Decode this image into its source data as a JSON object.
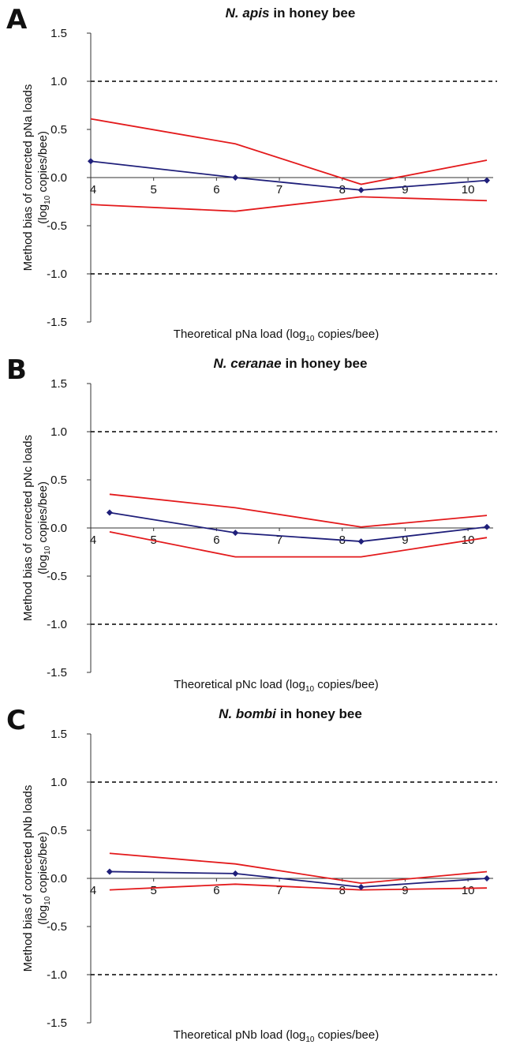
{
  "chart_data": [
    {
      "type": "line",
      "panel_label": "A",
      "title_italic": "N. apis",
      "title_rest": "in honey bee",
      "y_label_line1": "Method bias of corrected pNa loads",
      "y_label_line2": {
        "before": "(log",
        "sub": "10",
        "after": " copies/bee)"
      },
      "x_label": {
        "before": "Theoretical pNa load (log",
        "sub": "10",
        "after": " copies/bee)"
      },
      "x": [
        4,
        6.3,
        8.3,
        10.3
      ],
      "series": [
        {
          "color": "#e31a1c",
          "values": [
            0.61,
            0.35,
            -0.07,
            0.18
          ]
        },
        {
          "color": "#e31a1c",
          "values": [
            -0.28,
            -0.35,
            -0.2,
            -0.24
          ]
        },
        {
          "color": "#1f1f7a",
          "values": [
            0.17,
            0.0,
            -0.13,
            -0.03
          ],
          "markers": true
        }
      ],
      "reference_lines": [
        1,
        -1
      ],
      "xlim": [
        4,
        10.4
      ],
      "xticks": [
        4,
        5,
        6,
        7,
        8,
        9,
        10
      ],
      "ylim": [
        -1.5,
        1.5
      ],
      "yticks": [
        {
          "value": 1.5,
          "label": "1.5"
        },
        {
          "value": 1,
          "label": "1.0"
        },
        {
          "value": 0.5,
          "label": "0.5"
        },
        {
          "value": 0,
          "label": "0.0"
        },
        {
          "value": -0.5,
          "label": "-0.5"
        },
        {
          "value": -1,
          "label": "-1.0"
        },
        {
          "value": -1.5,
          "label": "-1.5"
        }
      ]
    },
    {
      "type": "line",
      "panel_label": "B",
      "title_italic": "N. ceranae",
      "title_rest": "in honey bee",
      "y_label_line1": "Method bias of corrected pNc loads",
      "y_label_line2": {
        "before": "(log",
        "sub": "10",
        "after": " copies/bee)"
      },
      "x_label": {
        "before": "Theoretical pNc load (log",
        "sub": "10",
        "after": " copies/bee)"
      },
      "x": [
        4.3,
        6.3,
        8.3,
        10.3
      ],
      "series": [
        {
          "color": "#e31a1c",
          "values": [
            0.35,
            0.21,
            0.01,
            0.13
          ]
        },
        {
          "color": "#e31a1c",
          "values": [
            -0.04,
            -0.3,
            -0.3,
            -0.1
          ]
        },
        {
          "color": "#1f1f7a",
          "values": [
            0.16,
            -0.05,
            -0.14,
            0.01
          ],
          "markers": true
        }
      ],
      "reference_lines": [
        1,
        -1
      ],
      "xlim": [
        4,
        10.4
      ],
      "xticks": [
        4,
        5,
        6,
        7,
        8,
        9,
        10
      ],
      "ylim": [
        -1.5,
        1.5
      ],
      "yticks": [
        {
          "value": 1.5,
          "label": "1.5"
        },
        {
          "value": 1,
          "label": "1.0"
        },
        {
          "value": 0.5,
          "label": "0.5"
        },
        {
          "value": 0,
          "label": "0.0"
        },
        {
          "value": -0.5,
          "label": "-0.5"
        },
        {
          "value": -1,
          "label": "-1.0"
        },
        {
          "value": -1.5,
          "label": "-1.5"
        }
      ]
    },
    {
      "type": "line",
      "panel_label": "C",
      "title_italic": "N. bombi",
      "title_rest": "in honey bee",
      "y_label_line1": "Method bias of corrected pNb loads",
      "y_label_line2": {
        "before": "(log",
        "sub": "10",
        "after": " copies/bee)"
      },
      "x_label": {
        "before": "Theoretical pNb load (log",
        "sub": "10",
        "after": " copies/bee)"
      },
      "x": [
        4.3,
        6.3,
        8.3,
        10.3
      ],
      "series": [
        {
          "color": "#e31a1c",
          "values": [
            0.26,
            0.15,
            -0.05,
            0.07
          ]
        },
        {
          "color": "#e31a1c",
          "values": [
            -0.12,
            -0.06,
            -0.12,
            -0.1
          ]
        },
        {
          "color": "#1f1f7a",
          "values": [
            0.07,
            0.05,
            -0.09,
            0.0
          ],
          "markers": true
        }
      ],
      "reference_lines": [
        1,
        -1
      ],
      "xlim": [
        4,
        10.4
      ],
      "xticks": [
        4,
        5,
        6,
        7,
        8,
        9,
        10
      ],
      "ylim": [
        -1.5,
        1.5
      ],
      "yticks": [
        {
          "value": 1.5,
          "label": "1.5"
        },
        {
          "value": 1,
          "label": "1.0"
        },
        {
          "value": 0.5,
          "label": "0.5"
        },
        {
          "value": 0,
          "label": "0.0"
        },
        {
          "value": -0.5,
          "label": "-0.5"
        },
        {
          "value": -1,
          "label": "-1.0"
        },
        {
          "value": -1.5,
          "label": "-1.5"
        }
      ]
    }
  ]
}
